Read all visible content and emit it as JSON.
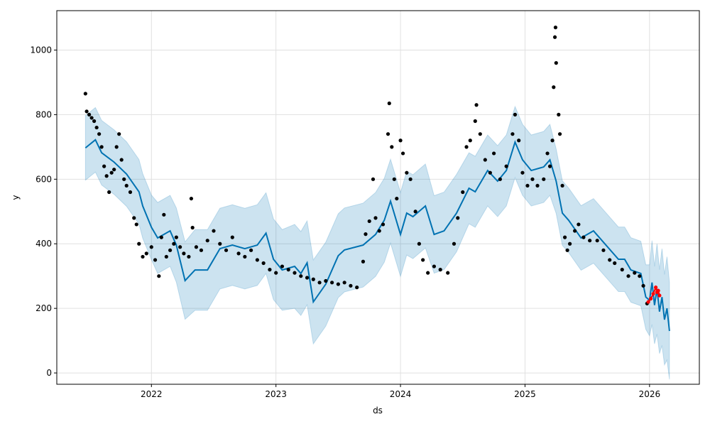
{
  "chart_data": {
    "type": "line",
    "title": "",
    "xlabel": "ds",
    "ylabel": "y",
    "xlim": [
      2021.24,
      2026.4
    ],
    "ylim": [
      -35,
      1122
    ],
    "grid": true,
    "x_ticks": [
      {
        "v": 2022,
        "label": "2022"
      },
      {
        "v": 2023,
        "label": "2023"
      },
      {
        "v": 2024,
        "label": "2024"
      },
      {
        "v": 2025,
        "label": "2025"
      },
      {
        "v": 2026,
        "label": "2026"
      }
    ],
    "y_ticks": [
      {
        "v": 0,
        "label": "0"
      },
      {
        "v": 200,
        "label": "200"
      },
      {
        "v": 400,
        "label": "400"
      },
      {
        "v": 600,
        "label": "600"
      },
      {
        "v": 800,
        "label": "800"
      },
      {
        "v": 1000,
        "label": "1000"
      }
    ],
    "colors": {
      "forecast": "#0072B2",
      "interval": "#0072B2",
      "observed": "#000000",
      "test": "#ff0000"
    },
    "forecast": {
      "x": [
        2021.47,
        2021.55,
        2021.6,
        2021.7,
        2021.8,
        2021.9,
        2021.93,
        2022.0,
        2022.05,
        2022.15,
        2022.2,
        2022.27,
        2022.35,
        2022.45,
        2022.55,
        2022.65,
        2022.75,
        2022.85,
        2022.92,
        2022.98,
        2023.05,
        2023.15,
        2023.2,
        2023.25,
        2023.3,
        2023.4,
        2023.5,
        2023.55,
        2023.7,
        2023.8,
        2023.87,
        2023.92,
        2024.0,
        2024.05,
        2024.1,
        2024.2,
        2024.27,
        2024.35,
        2024.45,
        2024.55,
        2024.6,
        2024.7,
        2024.78,
        2024.85,
        2024.92,
        2024.98,
        2025.05,
        2025.15,
        2025.2,
        2025.25,
        2025.3,
        2025.35,
        2025.45,
        2025.55,
        2025.65,
        2025.75,
        2025.8,
        2025.85,
        2025.93,
        2025.97,
        2026.0,
        2026.02,
        2026.04,
        2026.06,
        2026.08,
        2026.1,
        2026.12,
        2026.14,
        2026.16
      ],
      "yhat": [
        697,
        722,
        682,
        653,
        616,
        561,
        517,
        451,
        418,
        440,
        396,
        286,
        319,
        319,
        385,
        396,
        385,
        396,
        433,
        352,
        319,
        330,
        308,
        341,
        220,
        275,
        363,
        381,
        396,
        429,
        473,
        532,
        429,
        495,
        484,
        517,
        429,
        440,
        495,
        572,
        561,
        627,
        594,
        627,
        715,
        660,
        627,
        638,
        660,
        594,
        495,
        473,
        418,
        440,
        396,
        352,
        352,
        319,
        308,
        235,
        225,
        280,
        210,
        260,
        190,
        235,
        165,
        200,
        130
      ],
      "halfwidth": [
        100,
        100,
        100,
        100,
        100,
        100,
        100,
        100,
        110,
        110,
        115,
        120,
        125,
        125,
        125,
        125,
        125,
        125,
        125,
        125,
        125,
        130,
        130,
        130,
        130,
        130,
        130,
        130,
        130,
        130,
        130,
        130,
        130,
        130,
        130,
        130,
        120,
        120,
        120,
        110,
        110,
        110,
        110,
        110,
        110,
        110,
        110,
        110,
        110,
        100,
        100,
        100,
        100,
        100,
        100,
        100,
        100,
        100,
        100,
        100,
        110,
        130,
        120,
        140,
        130,
        150,
        140,
        160,
        150
      ]
    },
    "observed": [
      [
        2021.47,
        865
      ],
      [
        2021.48,
        810
      ],
      [
        2021.5,
        800
      ],
      [
        2021.52,
        790
      ],
      [
        2021.54,
        780
      ],
      [
        2021.56,
        760
      ],
      [
        2021.58,
        740
      ],
      [
        2021.6,
        700
      ],
      [
        2021.62,
        640
      ],
      [
        2021.64,
        610
      ],
      [
        2021.66,
        560
      ],
      [
        2021.68,
        620
      ],
      [
        2021.7,
        630
      ],
      [
        2021.72,
        700
      ],
      [
        2021.74,
        740
      ],
      [
        2021.76,
        660
      ],
      [
        2021.78,
        600
      ],
      [
        2021.8,
        580
      ],
      [
        2021.83,
        560
      ],
      [
        2021.86,
        480
      ],
      [
        2021.88,
        460
      ],
      [
        2021.9,
        400
      ],
      [
        2021.93,
        360
      ],
      [
        2021.96,
        370
      ],
      [
        2022.0,
        390
      ],
      [
        2022.03,
        350
      ],
      [
        2022.06,
        300
      ],
      [
        2022.08,
        420
      ],
      [
        2022.1,
        490
      ],
      [
        2022.12,
        360
      ],
      [
        2022.15,
        380
      ],
      [
        2022.18,
        400
      ],
      [
        2022.2,
        420
      ],
      [
        2022.23,
        390
      ],
      [
        2022.26,
        370
      ],
      [
        2022.3,
        360
      ],
      [
        2022.32,
        540
      ],
      [
        2022.33,
        450
      ],
      [
        2022.36,
        390
      ],
      [
        2022.4,
        380
      ],
      [
        2022.45,
        410
      ],
      [
        2022.5,
        440
      ],
      [
        2022.55,
        400
      ],
      [
        2022.6,
        380
      ],
      [
        2022.65,
        420
      ],
      [
        2022.7,
        370
      ],
      [
        2022.75,
        360
      ],
      [
        2022.8,
        380
      ],
      [
        2022.85,
        350
      ],
      [
        2022.9,
        340
      ],
      [
        2022.95,
        320
      ],
      [
        2023.0,
        310
      ],
      [
        2023.05,
        330
      ],
      [
        2023.1,
        320
      ],
      [
        2023.15,
        310
      ],
      [
        2023.2,
        300
      ],
      [
        2023.25,
        295
      ],
      [
        2023.3,
        290
      ],
      [
        2023.35,
        280
      ],
      [
        2023.4,
        285
      ],
      [
        2023.45,
        280
      ],
      [
        2023.5,
        275
      ],
      [
        2023.55,
        280
      ],
      [
        2023.6,
        270
      ],
      [
        2023.65,
        265
      ],
      [
        2023.7,
        345
      ],
      [
        2023.72,
        430
      ],
      [
        2023.75,
        470
      ],
      [
        2023.78,
        600
      ],
      [
        2023.8,
        480
      ],
      [
        2023.83,
        440
      ],
      [
        2023.86,
        460
      ],
      [
        2023.9,
        740
      ],
      [
        2023.91,
        835
      ],
      [
        2023.93,
        700
      ],
      [
        2023.95,
        600
      ],
      [
        2023.97,
        540
      ],
      [
        2024.0,
        720
      ],
      [
        2024.02,
        680
      ],
      [
        2024.05,
        620
      ],
      [
        2024.08,
        600
      ],
      [
        2024.12,
        500
      ],
      [
        2024.15,
        400
      ],
      [
        2024.18,
        350
      ],
      [
        2024.22,
        310
      ],
      [
        2024.27,
        330
      ],
      [
        2024.32,
        320
      ],
      [
        2024.38,
        310
      ],
      [
        2024.43,
        400
      ],
      [
        2024.46,
        480
      ],
      [
        2024.5,
        560
      ],
      [
        2024.53,
        700
      ],
      [
        2024.56,
        720
      ],
      [
        2024.6,
        780
      ],
      [
        2024.61,
        830
      ],
      [
        2024.64,
        740
      ],
      [
        2024.68,
        660
      ],
      [
        2024.72,
        620
      ],
      [
        2024.75,
        680
      ],
      [
        2024.8,
        600
      ],
      [
        2024.85,
        640
      ],
      [
        2024.9,
        740
      ],
      [
        2024.92,
        800
      ],
      [
        2024.95,
        720
      ],
      [
        2024.98,
        620
      ],
      [
        2025.02,
        580
      ],
      [
        2025.06,
        600
      ],
      [
        2025.1,
        580
      ],
      [
        2025.15,
        600
      ],
      [
        2025.18,
        680
      ],
      [
        2025.2,
        640
      ],
      [
        2025.22,
        720
      ],
      [
        2025.23,
        885
      ],
      [
        2025.24,
        1040
      ],
      [
        2025.245,
        1070
      ],
      [
        2025.25,
        960
      ],
      [
        2025.27,
        800
      ],
      [
        2025.28,
        740
      ],
      [
        2025.3,
        580
      ],
      [
        2025.32,
        420
      ],
      [
        2025.34,
        380
      ],
      [
        2025.36,
        400
      ],
      [
        2025.4,
        440
      ],
      [
        2025.43,
        460
      ],
      [
        2025.47,
        420
      ],
      [
        2025.52,
        410
      ],
      [
        2025.58,
        410
      ],
      [
        2025.63,
        380
      ],
      [
        2025.68,
        350
      ],
      [
        2025.72,
        340
      ],
      [
        2025.78,
        320
      ],
      [
        2025.83,
        300
      ],
      [
        2025.88,
        310
      ],
      [
        2025.92,
        300
      ],
      [
        2025.95,
        270
      ],
      [
        2025.98,
        215
      ]
    ],
    "test": [
      [
        2025.99,
        220
      ],
      [
        2026.01,
        230
      ],
      [
        2026.03,
        245
      ],
      [
        2026.05,
        265
      ],
      [
        2026.06,
        250
      ],
      [
        2026.07,
        255
      ],
      [
        2026.08,
        240
      ]
    ]
  }
}
